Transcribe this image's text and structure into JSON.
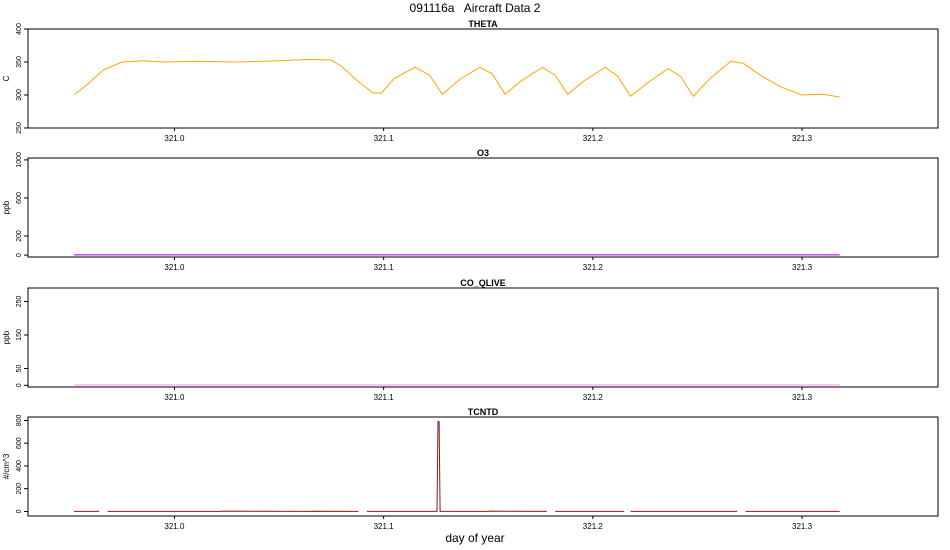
{
  "title": "091116a   Aircraft Data 2",
  "x_label": "day of year",
  "chart_data": [
    {
      "type": "line",
      "title": "THETA",
      "ylabel": "C",
      "color": "#FFA500",
      "xlim": [
        320.93,
        321.365
      ],
      "ylim": [
        250,
        400
      ],
      "x_ticks": [
        "321.0",
        "321.1",
        "321.2",
        "321.3"
      ],
      "y_ticks": [
        "250",
        "300",
        "350",
        "400"
      ],
      "series": [
        {
          "x": [
            320.952,
            320.958,
            320.966,
            320.975,
            320.985,
            320.995,
            321.01,
            321.03,
            321.05,
            321.065,
            321.075,
            321.08,
            321.088,
            321.095,
            321.099,
            321.105,
            321.115,
            321.122,
            321.128,
            321.137,
            321.146,
            321.152,
            321.158,
            321.166,
            321.176,
            321.182,
            321.188,
            321.196,
            321.206,
            321.212,
            321.218,
            321.226,
            321.236,
            321.242,
            321.248,
            321.256,
            321.266,
            321.272,
            321.28,
            321.29,
            321.3,
            321.31,
            321.318
          ],
          "y": [
            300,
            315,
            338,
            350,
            352,
            350,
            351,
            350,
            352,
            354,
            353,
            343,
            320,
            303,
            303,
            325,
            342,
            330,
            301,
            325,
            342,
            332,
            301,
            322,
            342,
            330,
            301,
            322,
            342,
            328,
            298,
            318,
            340,
            328,
            298,
            325,
            351,
            348,
            330,
            312,
            300,
            301,
            297
          ]
        }
      ]
    },
    {
      "type": "line",
      "title": "O3",
      "ylabel": "ppb",
      "color": "#9900CC",
      "xlim": [
        320.93,
        321.365
      ],
      "ylim": [
        -20,
        1020
      ],
      "x_ticks": [
        "321.0",
        "321.1",
        "321.2",
        "321.3"
      ],
      "y_ticks": [
        "0",
        "200",
        "600",
        "1000"
      ],
      "series": [
        {
          "x": [
            320.952,
            321.318
          ],
          "y": [
            2,
            2
          ]
        }
      ]
    },
    {
      "type": "line",
      "title": "CO_QLIVE",
      "ylabel": "ppb",
      "color": "#FF88FF",
      "xlim": [
        320.93,
        321.365
      ],
      "ylim": [
        -5,
        290
      ],
      "x_ticks": [
        "321.0",
        "321.1",
        "321.2",
        "321.3"
      ],
      "y_ticks": [
        "0",
        "50",
        "150",
        "250"
      ],
      "series": [
        {
          "x": [
            320.952,
            321.318
          ],
          "y": [
            1,
            1
          ]
        }
      ]
    },
    {
      "type": "line",
      "title": "TCNTD",
      "ylabel": "#/cm^3",
      "color": "#8B1A1A",
      "xlim": [
        320.93,
        321.365
      ],
      "ylim": [
        -40,
        830
      ],
      "x_ticks": [
        "321.0",
        "321.1",
        "321.2",
        "321.3"
      ],
      "y_ticks": [
        "0",
        "200",
        "400",
        "600",
        "800"
      ],
      "series": [
        {
          "x": [
            320.952,
            320.964
          ],
          "y": [
            0,
            0
          ]
        },
        {
          "x": [
            320.968,
            321.022,
            321.023,
            321.065,
            321.066,
            321.088
          ],
          "y": [
            0,
            0,
            3,
            0,
            2,
            0
          ]
        },
        {
          "x": [
            321.092,
            321.1255,
            321.126,
            321.1265,
            321.127,
            321.134
          ],
          "y": [
            0,
            0,
            790,
            790,
            0,
            0
          ]
        },
        {
          "x": [
            321.134,
            321.15,
            321.151,
            321.178
          ],
          "y": [
            0,
            0,
            3,
            0
          ]
        },
        {
          "x": [
            321.182,
            321.215
          ],
          "y": [
            0,
            0
          ]
        },
        {
          "x": [
            321.218,
            321.269
          ],
          "y": [
            0,
            0
          ]
        },
        {
          "x": [
            321.273,
            321.318
          ],
          "y": [
            0,
            0
          ]
        }
      ]
    }
  ]
}
